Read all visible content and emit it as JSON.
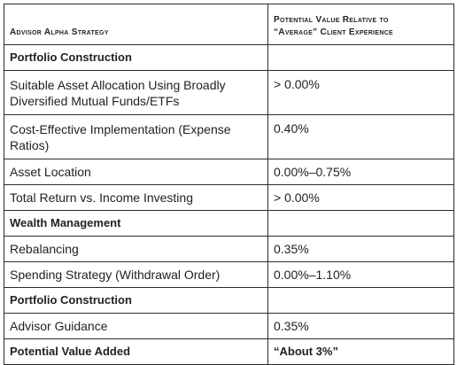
{
  "header": {
    "col1": "Advisor Alpha Strategy",
    "col2_line1": "Potential Value Relative to",
    "col2_line2": "“Average” Client Experience"
  },
  "rows": [
    {
      "type": "section",
      "label": "Portfolio Construction",
      "value": ""
    },
    {
      "type": "row2",
      "label_line1": "Suitable Asset Allocation Using Broadly",
      "label_line2": "Diversified Mutual Funds/ETFs",
      "value": "> 0.00%"
    },
    {
      "type": "row2",
      "label_line1": "Cost-Effective Implementation (Expense",
      "label_line2": "Ratios)",
      "value": "0.40%"
    },
    {
      "type": "row1",
      "label": "Asset Location",
      "value": "0.00%–0.75%"
    },
    {
      "type": "row1",
      "label": "Total Return vs. Income Investing",
      "value": "> 0.00%"
    },
    {
      "type": "section",
      "label": "Wealth Management",
      "value": ""
    },
    {
      "type": "row1",
      "label": "Rebalancing",
      "value": "0.35%"
    },
    {
      "type": "row1",
      "label": "Spending Strategy (Withdrawal Order)",
      "value": "0.00%–1.10%"
    },
    {
      "type": "section",
      "label": "Portfolio Construction",
      "value": ""
    },
    {
      "type": "row1",
      "label": "Advisor Guidance",
      "value": "0.35%"
    },
    {
      "type": "total",
      "label": "Potential Value Added",
      "value": "“About 3%”"
    }
  ]
}
